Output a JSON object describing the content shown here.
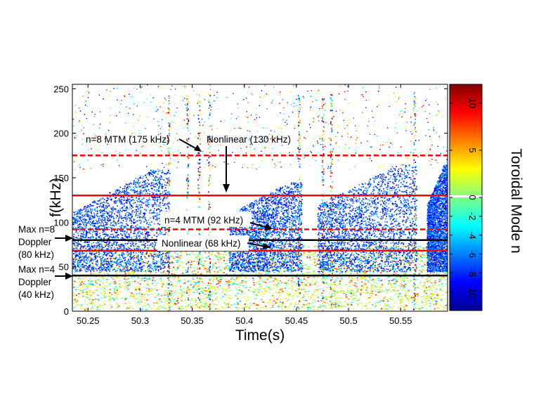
{
  "chart_data": {
    "type": "heatmap",
    "xlabel": "Time(s)",
    "ylabel": "f(kHz)",
    "xlim": [
      50.235,
      50.595
    ],
    "ylim": [
      0,
      255
    ],
    "xticks": [
      50.25,
      50.3,
      50.35,
      50.4,
      50.45,
      50.5,
      50.55
    ],
    "yticks": [
      0,
      50,
      100,
      150,
      200,
      250
    ],
    "colorbar": {
      "label": "Toroidal Mode n",
      "range": [
        -12,
        12
      ],
      "tick_values": [
        10,
        5,
        0,
        -2,
        -4,
        -6,
        -8,
        -10
      ],
      "tick_labels": [
        "10",
        "5",
        "0",
        "-2",
        "-4",
        "-6",
        "-8",
        "-10"
      ],
      "colormap": "jet"
    },
    "reference_lines": [
      {
        "label": "n=8 MTM (175 kHz)",
        "f_khz": 175,
        "style": "dashed",
        "color": "#ff0000"
      },
      {
        "label": "Nonlinear (130 kHz)",
        "f_khz": 130,
        "style": "solid",
        "color": "#ff0000"
      },
      {
        "label": "n=4 MTM (92 kHz)",
        "f_khz": 92,
        "style": "dashed",
        "color": "#ff0000"
      },
      {
        "label": "Nonlinear (68 kHz)",
        "f_khz": 68,
        "style": "solid",
        "color": "#ff0000"
      },
      {
        "label": "Max n=8 Doppler (80 kHz)",
        "f_khz": 80,
        "style": "solid",
        "color": "#000000"
      },
      {
        "label": "Max n=4 Doppler (40 kHz)",
        "f_khz": 40,
        "style": "solid",
        "color": "#000000"
      }
    ],
    "annotations": [
      {
        "text": "n=8 MTM (175 kHz)",
        "points_to": {
          "t": 50.37,
          "f_khz": 175
        }
      },
      {
        "text": "Nonlinear (130 kHz)",
        "points_to": {
          "t": 50.39,
          "f_khz": 130
        }
      },
      {
        "text": "n=4 MTM (92 kHz)",
        "points_to": {
          "t": 50.44,
          "f_khz": 92
        }
      },
      {
        "text": "Nonlinear (68 kHz)",
        "points_to": {
          "t": 50.44,
          "f_khz": 68
        }
      },
      {
        "lines": [
          "Max n=8",
          "Doppler",
          "(80 kHz)"
        ],
        "points_to": {
          "t": 50.235,
          "f_khz": 80
        }
      },
      {
        "lines": [
          "Max n=4",
          "Doppler",
          "(40 kHz)"
        ],
        "points_to": {
          "t": 50.235,
          "f_khz": 40
        }
      }
    ],
    "bursts": [
      {
        "t_start": 50.235,
        "t_end": 50.328,
        "f_min": 85,
        "f_max": 160,
        "dominant_n": -9
      },
      {
        "t_start": 50.385,
        "t_end": 50.455,
        "f_min": 90,
        "f_max": 145,
        "dominant_n": -9
      },
      {
        "t_start": 50.47,
        "t_end": 50.565,
        "f_min": 95,
        "f_max": 165,
        "dominant_n": -9
      },
      {
        "t_start": 50.575,
        "t_end": 50.595,
        "f_min": 95,
        "f_max": 165,
        "dominant_n": -9
      }
    ],
    "low_frequency_band": {
      "f_min": 0,
      "f_max": 75,
      "modes": [
        -4,
        -3,
        0,
        1,
        2,
        4,
        6,
        8
      ]
    }
  }
}
